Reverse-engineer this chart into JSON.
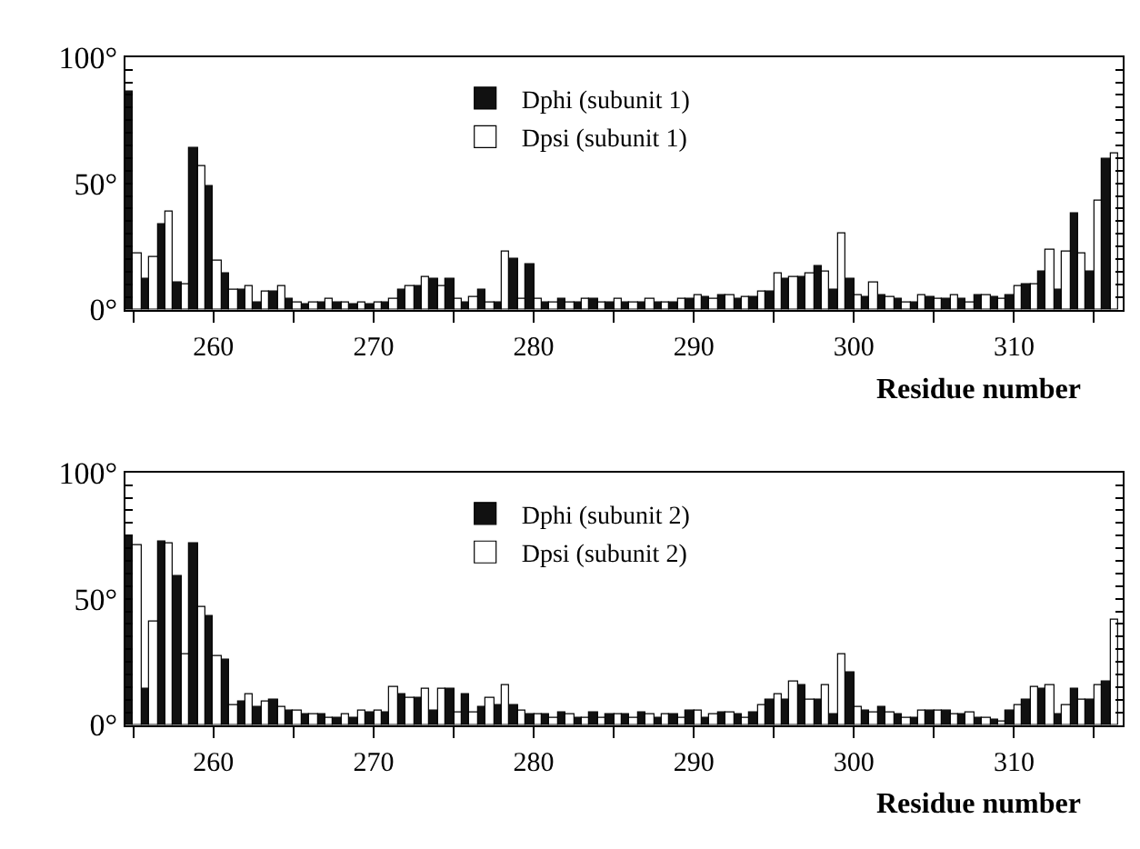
{
  "chart_data": [
    {
      "type": "bar",
      "xlabel": "Residue number",
      "legend": "top center",
      "x": [
        255,
        256,
        257,
        258,
        259,
        260,
        261,
        262,
        263,
        264,
        265,
        266,
        267,
        268,
        269,
        270,
        271,
        272,
        273,
        274,
        275,
        276,
        277,
        278,
        279,
        280,
        281,
        282,
        283,
        284,
        285,
        286,
        287,
        288,
        289,
        290,
        291,
        292,
        293,
        294,
        295,
        296,
        297,
        298,
        299,
        300,
        301,
        302,
        303,
        304,
        305,
        306,
        307,
        308,
        309,
        310,
        311,
        312,
        313,
        314,
        315,
        316
      ],
      "xlim": [
        254.5,
        316.8
      ],
      "xticks": [
        {
          "value": 255,
          "label": null
        },
        260,
        {
          "value": 265,
          "label": null
        },
        270,
        {
          "value": 275,
          "label": null
        },
        280,
        {
          "value": 285,
          "label": null
        },
        290,
        {
          "value": 295,
          "label": null
        },
        300,
        {
          "value": 305,
          "label": null
        },
        310,
        {
          "value": 315,
          "label": null
        }
      ],
      "ylim": [
        0,
        100
      ],
      "yticks": [
        {
          "value": 0,
          "label": "0°"
        },
        {
          "value": 5,
          "label": null
        },
        {
          "value": 10,
          "label": null
        },
        {
          "value": 15,
          "label": null
        },
        {
          "value": 20,
          "label": null
        },
        {
          "value": 25,
          "label": null
        },
        {
          "value": 30,
          "label": null
        },
        {
          "value": 35,
          "label": null
        },
        {
          "value": 40,
          "label": null
        },
        {
          "value": 45,
          "label": null
        },
        {
          "value": 50,
          "label": "50°"
        },
        {
          "value": 55,
          "label": null
        },
        {
          "value": 60,
          "label": null
        },
        {
          "value": 65,
          "label": null
        },
        {
          "value": 70,
          "label": null
        },
        {
          "value": 75,
          "label": null
        },
        {
          "value": 80,
          "label": null
        },
        {
          "value": 85,
          "label": null
        },
        {
          "value": 90,
          "label": null
        },
        {
          "value": 95,
          "label": null
        },
        {
          "value": 100,
          "label": "100°"
        }
      ],
      "series": [
        {
          "name": "Dphi (subunit 1)",
          "color": "#111111",
          "values": [
            86,
            12,
            34,
            11,
            64,
            49,
            14,
            8,
            3,
            7,
            4,
            2,
            3,
            3,
            2,
            2,
            3,
            8,
            9,
            12,
            12,
            3,
            8,
            3,
            20,
            18,
            3,
            4,
            3,
            4,
            3,
            3,
            3,
            3,
            3,
            4,
            5,
            6,
            4,
            5,
            7,
            12,
            13,
            17,
            8,
            12,
            5,
            6,
            4,
            3,
            5,
            4,
            4,
            6,
            5,
            6,
            10,
            15,
            8,
            38,
            15,
            60
          ]
        },
        {
          "name": "Dpsi (subunit 1)",
          "color": "#ffffff",
          "values": [
            22,
            21,
            39,
            10,
            57,
            19,
            8,
            9,
            7,
            9,
            3,
            3,
            4,
            3,
            3,
            3,
            4,
            9,
            13,
            9,
            4,
            5,
            3,
            23,
            4,
            4,
            3,
            3,
            4,
            3,
            4,
            3,
            4,
            3,
            4,
            6,
            4,
            6,
            5,
            7,
            14,
            13,
            14,
            15,
            30,
            6,
            11,
            5,
            3,
            6,
            4,
            6,
            3,
            6,
            4,
            9,
            10,
            24,
            23,
            22,
            43,
            62
          ]
        }
      ]
    },
    {
      "type": "bar",
      "xlabel": "Residue number",
      "legend": "top center",
      "x": [
        255,
        256,
        257,
        258,
        259,
        260,
        261,
        262,
        263,
        264,
        265,
        266,
        267,
        268,
        269,
        270,
        271,
        272,
        273,
        274,
        275,
        276,
        277,
        278,
        279,
        280,
        281,
        282,
        283,
        284,
        285,
        286,
        287,
        288,
        289,
        290,
        291,
        292,
        293,
        294,
        295,
        296,
        297,
        298,
        299,
        300,
        301,
        302,
        303,
        304,
        305,
        306,
        307,
        308,
        309,
        310,
        311,
        312,
        313,
        314,
        315,
        316
      ],
      "xlim": [
        254.5,
        316.8
      ],
      "xticks": [
        {
          "value": 255,
          "label": null
        },
        260,
        {
          "value": 265,
          "label": null
        },
        270,
        {
          "value": 275,
          "label": null
        },
        280,
        {
          "value": 285,
          "label": null
        },
        290,
        {
          "value": 295,
          "label": null
        },
        300,
        {
          "value": 305,
          "label": null
        },
        310,
        {
          "value": 315,
          "label": null
        }
      ],
      "ylim": [
        0,
        100
      ],
      "yticks": [
        {
          "value": 0,
          "label": "0°"
        },
        {
          "value": 5,
          "label": null
        },
        {
          "value": 10,
          "label": null
        },
        {
          "value": 15,
          "label": null
        },
        {
          "value": 20,
          "label": null
        },
        {
          "value": 25,
          "label": null
        },
        {
          "value": 30,
          "label": null
        },
        {
          "value": 35,
          "label": null
        },
        {
          "value": 40,
          "label": null
        },
        {
          "value": 45,
          "label": null
        },
        {
          "value": 50,
          "label": "50°"
        },
        {
          "value": 55,
          "label": null
        },
        {
          "value": 60,
          "label": null
        },
        {
          "value": 65,
          "label": null
        },
        {
          "value": 70,
          "label": null
        },
        {
          "value": 75,
          "label": null
        },
        {
          "value": 80,
          "label": null
        },
        {
          "value": 85,
          "label": null
        },
        {
          "value": 90,
          "label": null
        },
        {
          "value": 95,
          "label": null
        },
        {
          "value": 100,
          "label": "100°"
        }
      ],
      "series": [
        {
          "name": "Dphi (subunit 2)",
          "color": "#111111",
          "values": [
            75,
            14,
            73,
            59,
            72,
            43,
            26,
            9,
            7,
            10,
            6,
            4,
            4,
            3,
            3,
            5,
            5,
            12,
            11,
            6,
            14,
            12,
            7,
            8,
            8,
            4,
            4,
            5,
            3,
            5,
            4,
            4,
            5,
            3,
            4,
            6,
            3,
            5,
            4,
            5,
            10,
            10,
            16,
            10,
            4,
            21,
            6,
            7,
            4,
            3,
            6,
            6,
            4,
            3,
            2,
            6,
            10,
            14,
            4,
            14,
            10,
            17
          ]
        },
        {
          "name": "Dpsi (subunit 2)",
          "color": "#ffffff",
          "values": [
            71,
            41,
            72,
            28,
            47,
            27,
            8,
            12,
            9,
            7,
            6,
            4,
            3,
            4,
            6,
            6,
            15,
            11,
            14,
            14,
            5,
            5,
            11,
            16,
            6,
            4,
            3,
            4,
            3,
            3,
            4,
            3,
            4,
            4,
            3,
            6,
            4,
            5,
            3,
            8,
            12,
            17,
            10,
            16,
            28,
            7,
            5,
            5,
            3,
            6,
            6,
            4,
            5,
            3,
            1,
            8,
            15,
            16,
            8,
            10,
            16,
            42
          ]
        }
      ]
    }
  ]
}
